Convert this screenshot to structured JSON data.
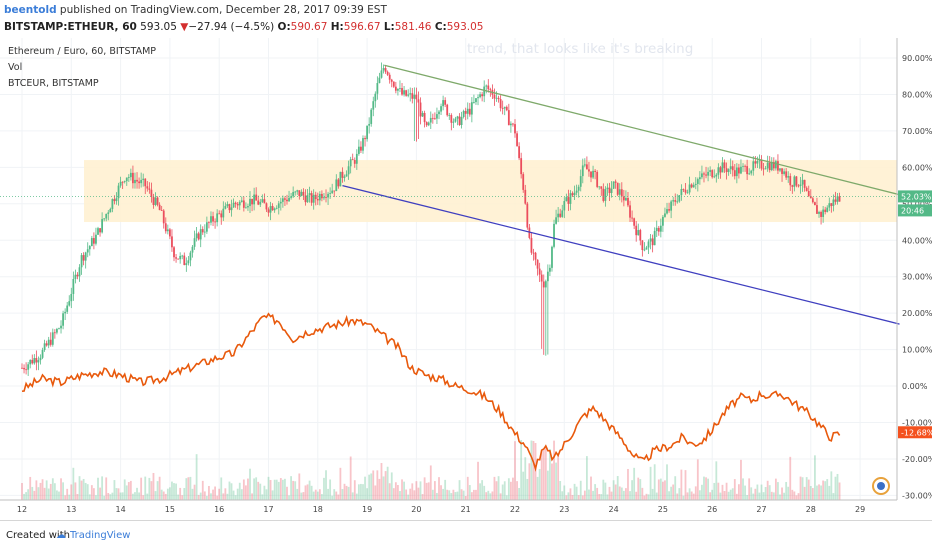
{
  "header": {
    "author": "beentold",
    "published": " published on TradingView.com, December 28, 2017 09:39 EST",
    "symbol": "BITSTAMP:ETHEUR, 60",
    "last": "593.05",
    "arrow": "▼",
    "change": "−27.94 (−4.5%)",
    "o_label": "O:",
    "o_val": "590.67",
    "h_label": "H:",
    "h_val": "596.67",
    "l_label": "L:",
    "l_val": "581.46",
    "c_label": "C:",
    "c_val": "593.05"
  },
  "legend": {
    "main": "Ethereum / Euro, 60, BITSTAMP",
    "vol": "Vol",
    "compare": "BTCEUR, BITSTAMP"
  },
  "annotation": "trend, that looks like it's breaking",
  "footer": {
    "created": "Created with",
    "brand": "TradingView"
  },
  "colors": {
    "up": "#53b987",
    "down": "#eb4d5c",
    "compare": "#e8590c",
    "zone": "#fff0cf",
    "green_trend": "#7ea96a",
    "blue_trend": "#3f3fbf",
    "badge_green": "#53b987",
    "badge_red": "#f4511e"
  },
  "chart_data": {
    "type": "candlestick",
    "x_ticks": [
      "12",
      "13",
      "14",
      "15",
      "16",
      "17",
      "18",
      "19",
      "20",
      "21",
      "22",
      "23",
      "24",
      "25",
      "26",
      "27",
      "28",
      "29"
    ],
    "y_ticks": [
      "90.00%",
      "80.00%",
      "70.00%",
      "60.00%",
      "50.00%",
      "40.00%",
      "30.00%",
      "20.00%",
      "10.00%",
      "0.00%",
      "-10.00%",
      "-20.00%",
      "-30.00%"
    ],
    "ylim": [
      -30,
      90
    ],
    "badges": {
      "eth_pct": "52.03%",
      "countdown": "20:46",
      "btc_pct": "-12.68%"
    },
    "eth_path": [
      [
        12.0,
        5
      ],
      [
        12.4,
        9
      ],
      [
        12.8,
        17
      ],
      [
        13.2,
        35
      ],
      [
        13.5,
        41
      ],
      [
        13.8,
        50
      ],
      [
        14.1,
        58
      ],
      [
        14.5,
        55
      ],
      [
        14.8,
        48
      ],
      [
        15.1,
        36
      ],
      [
        15.3,
        34
      ],
      [
        15.6,
        42
      ],
      [
        15.9,
        46
      ],
      [
        16.3,
        50
      ],
      [
        16.7,
        51
      ],
      [
        17.0,
        49
      ],
      [
        17.3,
        51
      ],
      [
        17.6,
        53
      ],
      [
        17.9,
        51
      ],
      [
        18.1,
        53
      ],
      [
        18.3,
        54
      ],
      [
        18.5,
        58
      ],
      [
        18.8,
        63
      ],
      [
        19.0,
        70
      ],
      [
        19.2,
        82
      ],
      [
        19.35,
        88
      ],
      [
        19.5,
        84
      ],
      [
        19.7,
        80
      ],
      [
        20.0,
        79
      ],
      [
        20.2,
        70
      ],
      [
        20.5,
        78
      ],
      [
        20.8,
        72
      ],
      [
        21.1,
        76
      ],
      [
        21.4,
        82
      ],
      [
        21.6,
        80
      ],
      [
        21.8,
        75
      ],
      [
        22.0,
        70
      ],
      [
        22.1,
        60
      ],
      [
        22.2,
        52
      ],
      [
        22.3,
        38
      ],
      [
        22.5,
        30
      ],
      [
        22.6,
        28
      ],
      [
        22.7,
        33
      ],
      [
        22.8,
        45
      ],
      [
        23.0,
        50
      ],
      [
        23.2,
        53
      ],
      [
        23.4,
        60
      ],
      [
        23.6,
        58
      ],
      [
        23.8,
        52
      ],
      [
        24.0,
        55
      ],
      [
        24.2,
        52
      ],
      [
        24.4,
        45
      ],
      [
        24.6,
        38
      ],
      [
        24.8,
        40
      ],
      [
        25.0,
        46
      ],
      [
        25.3,
        52
      ],
      [
        25.6,
        56
      ],
      [
        25.9,
        58
      ],
      [
        26.2,
        60
      ],
      [
        26.5,
        59
      ],
      [
        26.8,
        60
      ],
      [
        27.1,
        61
      ],
      [
        27.4,
        60
      ],
      [
        27.6,
        56
      ],
      [
        27.8,
        56
      ],
      [
        28.0,
        50
      ],
      [
        28.2,
        47
      ],
      [
        28.4,
        50
      ],
      [
        28.6,
        52
      ]
    ],
    "btc_path": [
      [
        12.0,
        -1
      ],
      [
        12.4,
        2
      ],
      [
        12.8,
        1
      ],
      [
        13.2,
        3
      ],
      [
        13.6,
        4
      ],
      [
        14.0,
        3
      ],
      [
        14.4,
        1
      ],
      [
        14.8,
        2
      ],
      [
        15.2,
        4
      ],
      [
        15.6,
        6
      ],
      [
        16.0,
        8
      ],
      [
        16.3,
        9
      ],
      [
        16.6,
        14
      ],
      [
        16.9,
        19
      ],
      [
        17.2,
        18
      ],
      [
        17.5,
        13
      ],
      [
        17.8,
        15
      ],
      [
        18.1,
        16
      ],
      [
        18.4,
        17
      ],
      [
        18.7,
        18
      ],
      [
        19.0,
        17
      ],
      [
        19.3,
        14
      ],
      [
        19.6,
        11
      ],
      [
        19.9,
        5
      ],
      [
        20.2,
        3
      ],
      [
        20.5,
        2
      ],
      [
        20.8,
        0
      ],
      [
        21.1,
        -1
      ],
      [
        21.4,
        -3
      ],
      [
        21.7,
        -7
      ],
      [
        22.0,
        -13
      ],
      [
        22.2,
        -16
      ],
      [
        22.4,
        -22
      ],
      [
        22.6,
        -17
      ],
      [
        22.8,
        -20
      ],
      [
        23.0,
        -16
      ],
      [
        23.2,
        -12
      ],
      [
        23.4,
        -8
      ],
      [
        23.6,
        -6
      ],
      [
        23.8,
        -9
      ],
      [
        24.0,
        -12
      ],
      [
        24.2,
        -15
      ],
      [
        24.4,
        -19
      ],
      [
        24.6,
        -21
      ],
      [
        24.8,
        -18
      ],
      [
        25.0,
        -17
      ],
      [
        25.2,
        -16
      ],
      [
        25.4,
        -14
      ],
      [
        25.6,
        -16
      ],
      [
        25.8,
        -15
      ],
      [
        26.0,
        -12
      ],
      [
        26.2,
        -8
      ],
      [
        26.4,
        -5
      ],
      [
        26.6,
        -3
      ],
      [
        26.8,
        -4
      ],
      [
        27.0,
        -2
      ],
      [
        27.2,
        -3
      ],
      [
        27.4,
        -2
      ],
      [
        27.6,
        -4
      ],
      [
        27.8,
        -6
      ],
      [
        28.0,
        -8
      ],
      [
        28.2,
        -11
      ],
      [
        28.4,
        -14
      ],
      [
        28.6,
        -13
      ]
    ],
    "support_zone": [
      45,
      62
    ],
    "green_trend": [
      [
        19.35,
        88
      ],
      [
        29.8,
        52.5
      ]
    ],
    "blue_trend": [
      [
        18.5,
        55
      ],
      [
        29.8,
        17
      ]
    ],
    "volume_max_pct": 17
  }
}
